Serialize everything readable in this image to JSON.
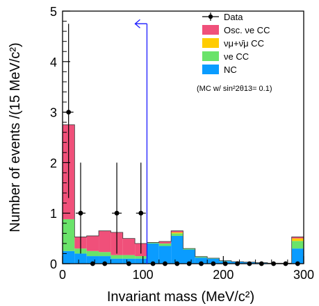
{
  "chart_data": {
    "type": "bar",
    "subtype": "stacked-histogram",
    "xlabel": "Invariant mass (MeV/c²)",
    "ylabel": "Number of events /(15 MeV/c²)",
    "xlim": [
      0,
      300
    ],
    "ylim": [
      0,
      5
    ],
    "bin_width": 15,
    "x_ticks": [
      0,
      100,
      200,
      300
    ],
    "y_ticks": [
      0,
      1,
      2,
      3,
      4,
      5
    ],
    "bin_edges": [
      0,
      15,
      30,
      45,
      60,
      75,
      90,
      105,
      120,
      135,
      150,
      165,
      180,
      195,
      210,
      225,
      240,
      255,
      270,
      285,
      300
    ],
    "series": [
      {
        "name": "NC",
        "color": "#0a9cff",
        "values": [
          0.25,
          0.2,
          0.15,
          0.15,
          0.1,
          0.1,
          0.1,
          0.4,
          0.35,
          0.55,
          0.28,
          0.12,
          0.1,
          0.05,
          0.04,
          0.03,
          0.02,
          0.01,
          0.01,
          0.3
        ]
      },
      {
        "name": "νe CC",
        "color": "#6ae36a",
        "values": [
          0.63,
          0.1,
          0.1,
          0.08,
          0.07,
          0.07,
          0.05,
          0.02,
          0.05,
          0.05,
          0.02,
          0.02,
          0.01,
          0.01,
          0.0,
          0.0,
          0.0,
          0.0,
          0.0,
          0.15
        ]
      },
      {
        "name": "νμ+ν̄μ CC",
        "color": "#ffcc00",
        "values": [
          0.0,
          0.0,
          0.0,
          0.0,
          0.0,
          0.0,
          0.0,
          0.0,
          0.0,
          0.02,
          0.0,
          0.0,
          0.0,
          0.0,
          0.0,
          0.0,
          0.0,
          0.0,
          0.0,
          0.05
        ]
      },
      {
        "name": "Osc. νe CC",
        "color": "#f0507a",
        "values": [
          1.87,
          0.23,
          0.3,
          0.42,
          0.45,
          0.33,
          0.25,
          0.0,
          0.04,
          0.03,
          0.0,
          0.0,
          0.0,
          0.0,
          0.0,
          0.0,
          0.0,
          0.0,
          0.0,
          0.03
        ]
      }
    ],
    "data_points": {
      "name": "Data",
      "x": [
        7.5,
        22.5,
        37.5,
        52.5,
        67.5,
        82.5,
        97.5,
        112.5,
        127.5,
        142.5,
        157.5,
        172.5,
        187.5,
        202.5,
        217.5,
        232.5,
        247.5,
        262.5,
        277.5,
        292.5
      ],
      "y": [
        3,
        1,
        0,
        0,
        1,
        0,
        1,
        0,
        0,
        0,
        0,
        0,
        0,
        0,
        0,
        0,
        0,
        0,
        0,
        0
      ],
      "err_low": [
        1.7,
        0.8,
        0,
        0,
        0.8,
        0,
        0.8,
        0,
        0,
        0,
        0,
        0,
        0,
        0,
        0,
        0,
        0,
        0,
        0,
        0
      ],
      "err_high": [
        1.75,
        1.0,
        0,
        0,
        1.0,
        0,
        1.0,
        0,
        0,
        0,
        0,
        0,
        0,
        0,
        0,
        0,
        0,
        0,
        0,
        0
      ]
    },
    "cut": {
      "x": 105,
      "y_top": 4.75,
      "direction": "left"
    },
    "legend": {
      "placement": "top-right",
      "entries": [
        "Data",
        "Osc. νe CC",
        "νμ+ν̄μ CC",
        "νe CC",
        "NC"
      ],
      "note": "(MC w/ sin²2θ13= 0.1)"
    },
    "grid": false
  }
}
